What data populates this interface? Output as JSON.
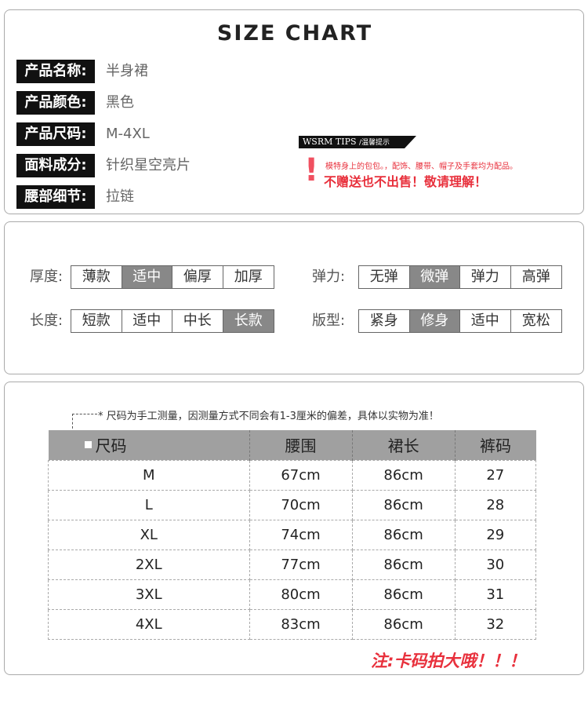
{
  "title": "SIZE CHART",
  "info": [
    {
      "label": "产品名称:",
      "value": "半身裙"
    },
    {
      "label": "产品颜色:",
      "value": "黑色"
    },
    {
      "label": "产品尺码:",
      "value": "M-4XL"
    },
    {
      "label": "面料成分:",
      "value": "针织星空亮片"
    },
    {
      "label": "腰部细节:",
      "value": "拉链"
    }
  ],
  "tips": {
    "brand": "WSRM TIPS",
    "sub": "/温馨提示",
    "line1": "模特身上的包包。，配饰、腰带、帽子及手套均为配品。",
    "line2": "不赠送也不出售！敬请理解！",
    "accent": "#e8303c"
  },
  "attributes": [
    {
      "label": "厚度:",
      "options": [
        "薄款",
        "适中",
        "偏厚",
        "加厚"
      ],
      "selected": "适中"
    },
    {
      "label": "弹力:",
      "options": [
        "无弹",
        "微弹",
        "弹力",
        "高弹"
      ],
      "selected": "微弹"
    },
    {
      "label": "长度:",
      "options": [
        "短款",
        "适中",
        "中长",
        "长款"
      ],
      "selected": "长款"
    },
    {
      "label": "版型:",
      "options": [
        "紧身",
        "修身",
        "适中",
        "宽松"
      ],
      "selected": "修身"
    }
  ],
  "note": "* 尺码为手工测量，因测量方式不同会有1-3厘米的偏差，具体以实物为准！",
  "table": {
    "headers": [
      "尺码",
      "腰围",
      "裙长",
      "裤码"
    ],
    "rows": [
      [
        "M",
        "67cm",
        "86cm",
        "27"
      ],
      [
        "L",
        "70cm",
        "86cm",
        "28"
      ],
      [
        "XL",
        "74cm",
        "86cm",
        "29"
      ],
      [
        "2XL",
        "77cm",
        "86cm",
        "30"
      ],
      [
        "3XL",
        "80cm",
        "86cm",
        "31"
      ],
      [
        "4XL",
        "83cm",
        "86cm",
        "32"
      ]
    ]
  },
  "warning": "注:卡码拍大哦！！！"
}
